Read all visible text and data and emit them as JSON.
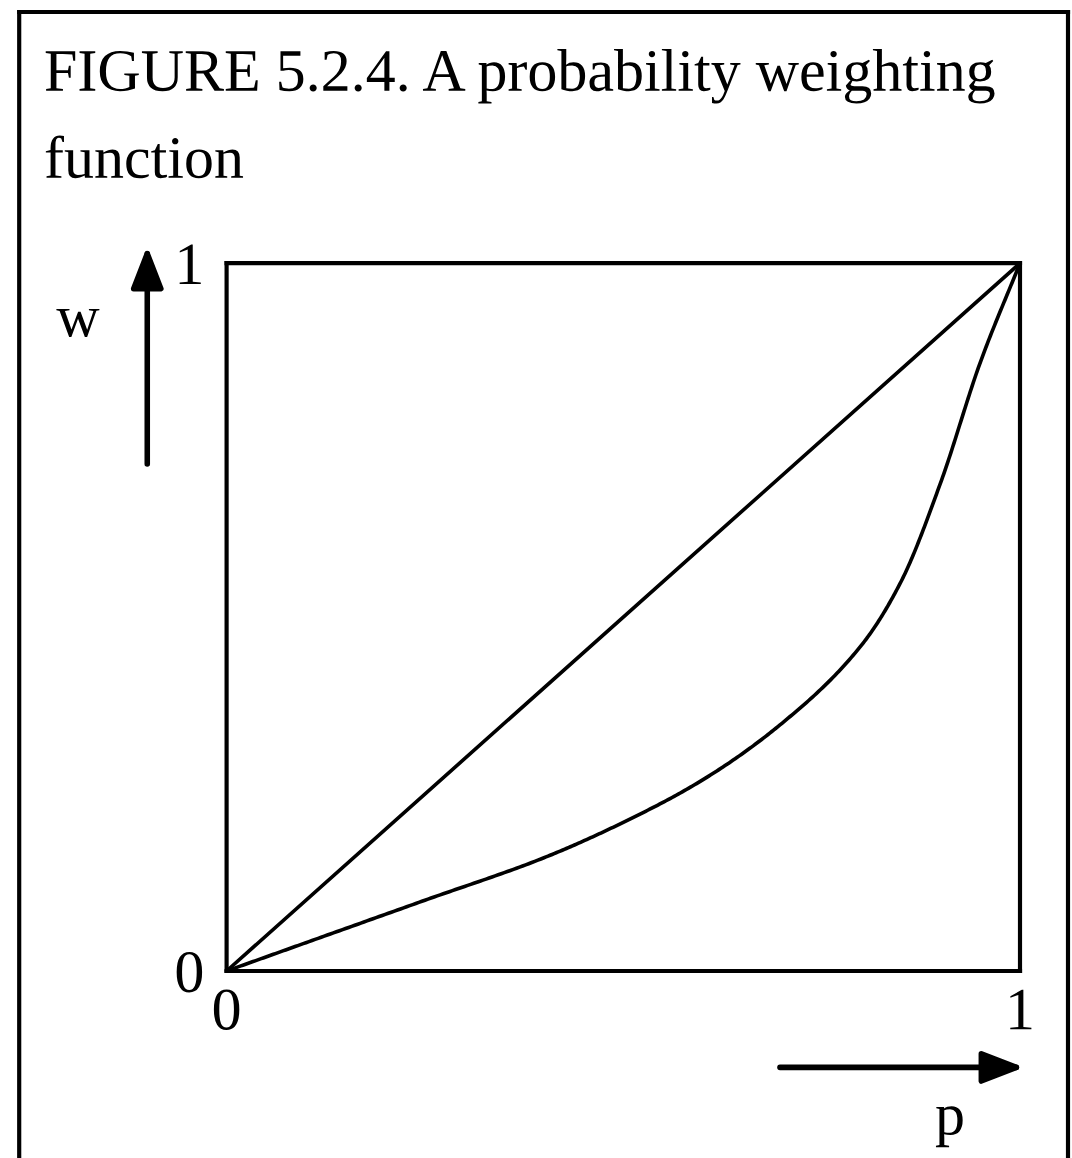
{
  "chart_data": {
    "type": "line",
    "title": "FIGURE 5.2.4. A probability weighting function",
    "xlabel": "p",
    "ylabel": "w",
    "series": [
      {
        "color": "#000000",
        "x": [
          0,
          1
        ],
        "values": [
          0,
          1
        ]
      },
      {
        "color": "#000000",
        "x": [
          0,
          0.1,
          0.25,
          0.4,
          0.5,
          0.6,
          0.7,
          0.8,
          0.85,
          0.9,
          0.95,
          1
        ],
        "values": [
          0,
          0.04,
          0.1,
          0.16,
          0.21,
          0.27,
          0.35,
          0.46,
          0.55,
          0.69,
          0.86,
          1
        ]
      }
    ],
    "xlim": [
      0,
      1
    ],
    "ylim": [
      0,
      1
    ],
    "xticks": [
      0,
      1
    ],
    "yticks": [
      0,
      1
    ]
  }
}
